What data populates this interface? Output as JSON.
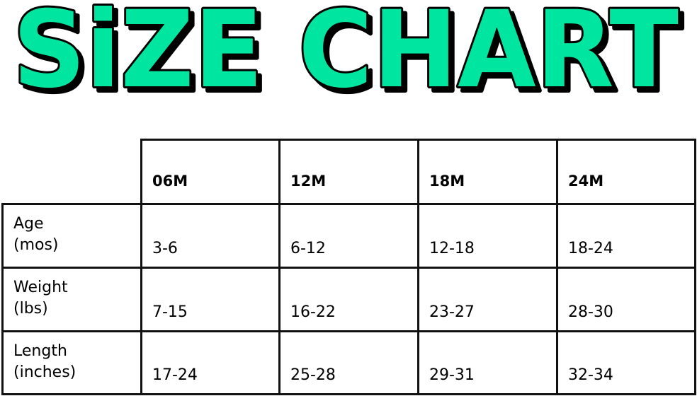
{
  "title": "SiZE CHART",
  "title_color": "#00E6A0",
  "chart_data": {
    "type": "table",
    "columns": [
      "06M",
      "12M",
      "18M",
      "24M"
    ],
    "rows": [
      {
        "label_line1": "Age",
        "label_line2": "(mos)",
        "values": [
          "3-6",
          "6-12",
          "12-18",
          "18-24"
        ]
      },
      {
        "label_line1": "Weight",
        "label_line2": "(lbs)",
        "values": [
          "7-15",
          "16-22",
          "23-27",
          "28-30"
        ]
      },
      {
        "label_line1": "Length",
        "label_line2": "(inches)",
        "values": [
          "17-24",
          "25-28",
          "29-31",
          "32-34"
        ]
      }
    ]
  }
}
